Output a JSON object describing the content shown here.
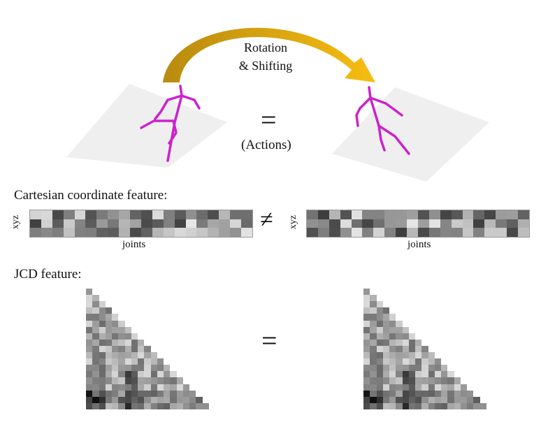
{
  "arrow_label": {
    "line1": "Rotation",
    "line2": "& Shifting"
  },
  "center": {
    "equals_top": "=",
    "actions": "(Actions)"
  },
  "cartesian": {
    "title": "Cartesian coordinate feature:",
    "axis_row": "xyz",
    "axis_col": "joints",
    "not_equal": "≠"
  },
  "jcd": {
    "title": "JCD feature:",
    "equals": "="
  },
  "colors": {
    "skeleton": "#cc22cc",
    "arrow_start": "#c8961a",
    "arrow_end": "#f5b800",
    "plane": "#efefef"
  }
}
